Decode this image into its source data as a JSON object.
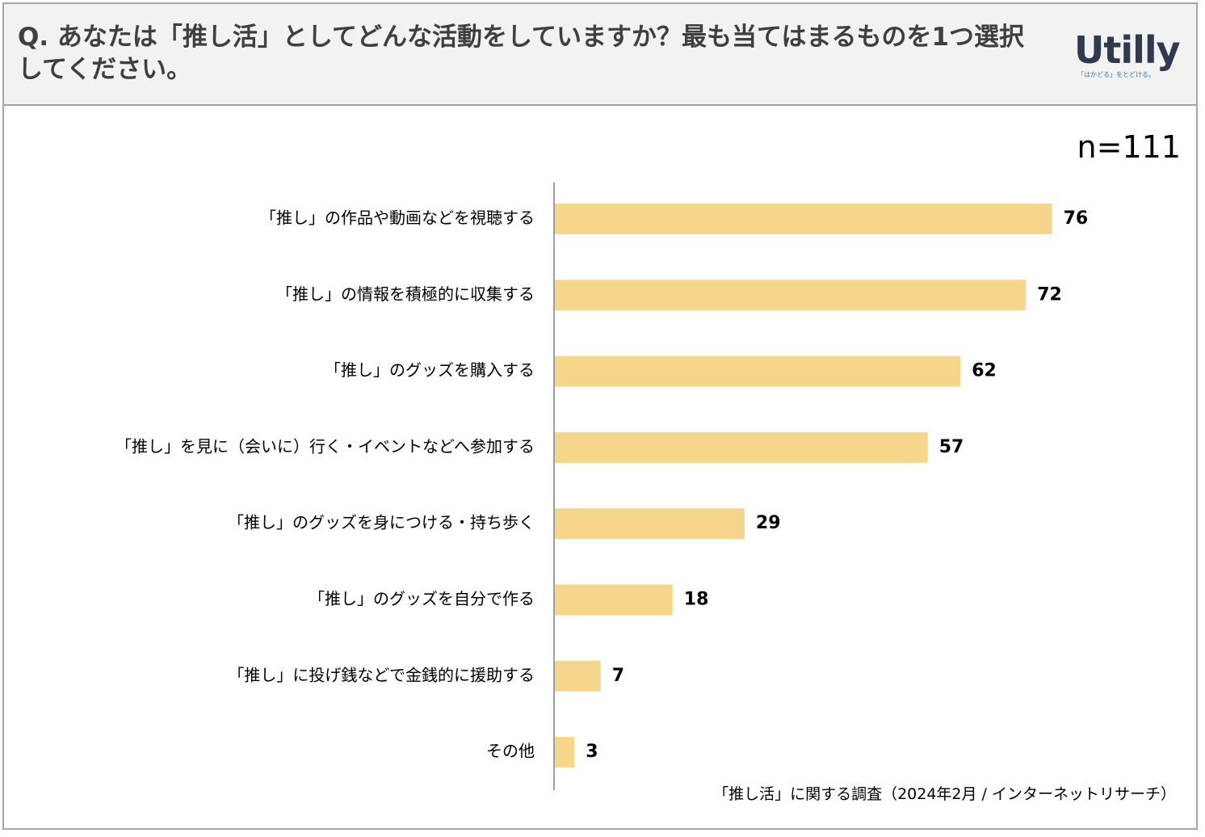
{
  "header": {
    "question": "Q. あなたは「推し活」としてどんな活動をしていますか？最も当てはまるものを1つ選択してください。",
    "logo": {
      "wordmark": "Utilly",
      "tagline": "「はかどる」をとどける。"
    }
  },
  "sample_size": "n=111",
  "source_note": "「推し活」に関する調査（2024年2月 / インターネットリサーチ）",
  "colors": {
    "bar": "#f6d68a",
    "axis": "#7f7f7f",
    "header_bg": "#f2f2f2",
    "border": "#a6a6a6",
    "logo_text": "#2f3b4c",
    "logo_tagline": "#2e79c2"
  },
  "chart_data": {
    "type": "bar",
    "orientation": "horizontal",
    "title": "",
    "xlabel": "",
    "ylabel": "",
    "grid": false,
    "legend": "none",
    "xlim": [
      0,
      80
    ],
    "categories": [
      "「推し」の作品や動画などを視聴する",
      "「推し」の情報を積極的に収集する",
      "「推し」のグッズを購入する",
      "「推し」を見に（会いに）行く・イベントなどへ参加する",
      "「推し」のグッズを身につける・持ち歩く",
      "「推し」のグッズを自分で作る",
      "「推し」に投げ銭などで金銭的に援助する",
      "その他"
    ],
    "values": [
      76,
      72,
      62,
      57,
      29,
      18,
      7,
      3
    ]
  }
}
